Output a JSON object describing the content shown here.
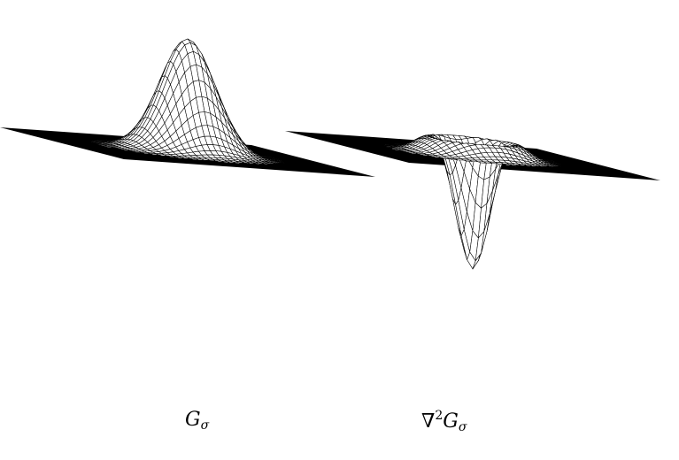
{
  "figure": {
    "panels": [
      {
        "id": "gaussian",
        "caption": {
          "symbol": "G",
          "subscript": "σ"
        },
        "surface": "gaussian"
      },
      {
        "id": "laplacian-of-gaussian",
        "caption": {
          "operator": "∇",
          "superscript": "2",
          "symbol": "G",
          "subscript": "σ"
        },
        "surface": "laplacian-of-gaussian"
      }
    ],
    "colors": {
      "background": "#ffffff",
      "mesh": "#000000",
      "surface_fill": "#ffffff"
    }
  }
}
